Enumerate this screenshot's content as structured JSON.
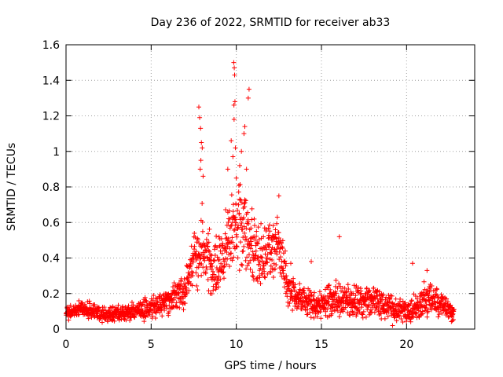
{
  "chart_data": {
    "type": "scatter",
    "title": "Day 236 of 2022, SRMTID for receiver ab33",
    "xlabel": "GPS time / hours",
    "ylabel": "SRMTID / TECUs",
    "xlim": [
      0,
      24
    ],
    "ylim": [
      0,
      1.6
    ],
    "xticks": [
      0,
      5,
      10,
      15,
      20
    ],
    "xtick_labels": [
      "0",
      "5",
      "10",
      "15",
      "20"
    ],
    "yticks": [
      0,
      0.2,
      0.4,
      0.6,
      0.8,
      1.0,
      1.2,
      1.4,
      1.6
    ],
    "ytick_labels": [
      "0",
      "0.2",
      "0.4",
      "0.6",
      "0.8",
      "1",
      "1.2",
      "1.4",
      "1.6"
    ],
    "grid": true,
    "marker": "+",
    "color": "#ff0000",
    "envelope": {
      "x": [
        0,
        1,
        2,
        3,
        4,
        5,
        6,
        6.5,
        7,
        7.5,
        8,
        8.5,
        9,
        9.5,
        10,
        10.5,
        11,
        11.5,
        12,
        12.5,
        13,
        13.5,
        14,
        15,
        16,
        17,
        18,
        19,
        20,
        21,
        22,
        22.8
      ],
      "center": [
        0.09,
        0.12,
        0.08,
        0.09,
        0.1,
        0.12,
        0.16,
        0.2,
        0.22,
        0.38,
        0.48,
        0.38,
        0.34,
        0.52,
        0.55,
        0.55,
        0.45,
        0.42,
        0.45,
        0.48,
        0.25,
        0.18,
        0.16,
        0.15,
        0.17,
        0.15,
        0.16,
        0.12,
        0.1,
        0.17,
        0.14,
        0.08
      ],
      "spread": [
        0.04,
        0.05,
        0.05,
        0.05,
        0.05,
        0.06,
        0.08,
        0.1,
        0.12,
        0.16,
        0.2,
        0.18,
        0.18,
        0.25,
        0.3,
        0.28,
        0.2,
        0.18,
        0.18,
        0.16,
        0.12,
        0.08,
        0.08,
        0.1,
        0.12,
        0.09,
        0.1,
        0.08,
        0.07,
        0.1,
        0.08,
        0.04
      ]
    },
    "outliers": [
      {
        "x": 7.8,
        "y": 1.25
      },
      {
        "x": 7.85,
        "y": 1.19
      },
      {
        "x": 7.9,
        "y": 1.13
      },
      {
        "x": 7.95,
        "y": 1.05
      },
      {
        "x": 8.0,
        "y": 1.02
      },
      {
        "x": 7.92,
        "y": 0.95
      },
      {
        "x": 7.88,
        "y": 0.9
      },
      {
        "x": 8.05,
        "y": 0.86
      },
      {
        "x": 9.85,
        "y": 1.5
      },
      {
        "x": 9.88,
        "y": 1.47
      },
      {
        "x": 9.9,
        "y": 1.43
      },
      {
        "x": 9.92,
        "y": 1.28
      },
      {
        "x": 9.86,
        "y": 1.26
      },
      {
        "x": 10.75,
        "y": 1.35
      },
      {
        "x": 10.7,
        "y": 1.3
      },
      {
        "x": 9.87,
        "y": 1.18
      },
      {
        "x": 10.5,
        "y": 1.14
      },
      {
        "x": 10.45,
        "y": 1.1
      },
      {
        "x": 9.7,
        "y": 1.06
      },
      {
        "x": 9.95,
        "y": 1.02
      },
      {
        "x": 10.3,
        "y": 1.0
      },
      {
        "x": 9.8,
        "y": 0.97
      },
      {
        "x": 10.2,
        "y": 0.92
      },
      {
        "x": 10.6,
        "y": 0.9
      },
      {
        "x": 9.5,
        "y": 0.9
      },
      {
        "x": 10.0,
        "y": 0.85
      },
      {
        "x": 12.5,
        "y": 0.75
      },
      {
        "x": 16.05,
        "y": 0.52
      },
      {
        "x": 20.35,
        "y": 0.37
      },
      {
        "x": 21.2,
        "y": 0.33
      },
      {
        "x": 14.4,
        "y": 0.38
      },
      {
        "x": 13.2,
        "y": 0.37
      }
    ]
  }
}
